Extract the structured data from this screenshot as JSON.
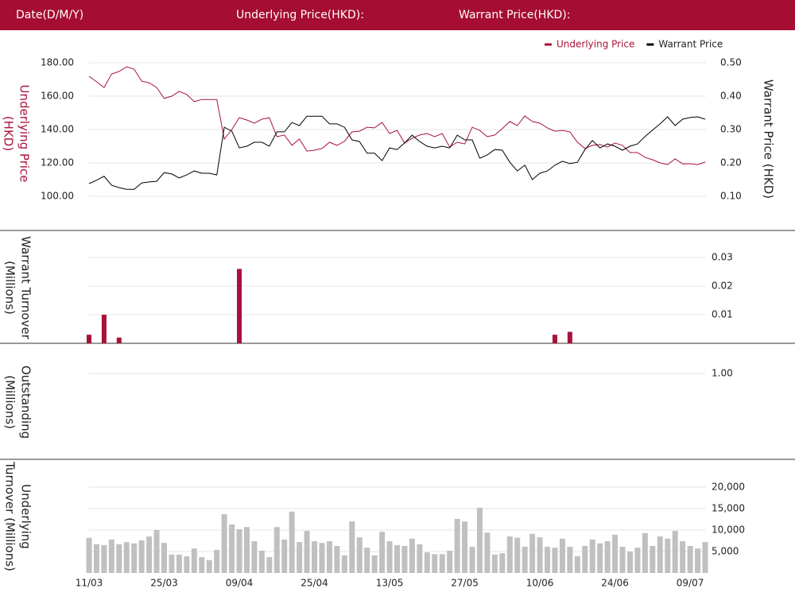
{
  "header": {
    "fields": [
      "Date(D/M/Y)",
      "Underlying Price(HKD):",
      "Warrant Price(HKD):"
    ]
  },
  "chart_data": [
    {
      "type": "line",
      "legend": "top-right",
      "grid": true,
      "y_label": [
        "Underlying Price",
        "(HKD)"
      ],
      "y2_label": [
        "Warrant  Price (HKD)"
      ],
      "ylim": [
        100,
        180
      ],
      "yticks": [
        {
          "value": 100,
          "label": "100.00"
        },
        {
          "value": 120,
          "label": "120.00"
        },
        {
          "value": 140,
          "label": "140.00"
        },
        {
          "value": 160,
          "label": "160.00"
        },
        {
          "value": 180,
          "label": "180.00"
        }
      ],
      "y2lim": [
        0.1,
        0.5
      ],
      "y2ticks": [
        {
          "value": 0.1,
          "label": "0.10"
        },
        {
          "value": 0.2,
          "label": "0.20"
        },
        {
          "value": 0.3,
          "label": "0.30"
        },
        {
          "value": 0.4,
          "label": "0.40"
        },
        {
          "value": 0.5,
          "label": "0.50"
        }
      ],
      "series": [
        {
          "name": "Underlying Price",
          "color": "#a8123a",
          "values": [
            171.9,
            168.6,
            165.2,
            173.3,
            174.8,
            177.6,
            176.2,
            169.0,
            168.0,
            165.2,
            158.6,
            160.0,
            162.9,
            161.0,
            156.7,
            158.0,
            158.0,
            158.0,
            134.3,
            140.0,
            147.1,
            145.7,
            143.8,
            146.2,
            147.1,
            135.7,
            136.7,
            130.5,
            134.3,
            127.1,
            127.6,
            128.6,
            132.4,
            130.5,
            132.9,
            138.6,
            139.0,
            141.4,
            141.0,
            144.3,
            137.6,
            139.5,
            131.9,
            134.8,
            136.7,
            137.6,
            135.7,
            137.6,
            129.5,
            132.4,
            131.4,
            141.4,
            139.5,
            135.7,
            136.7,
            140.5,
            144.8,
            142.4,
            148.1,
            144.8,
            143.8,
            141.0,
            139.0,
            139.5,
            138.6,
            132.4,
            128.6,
            130.5,
            131.0,
            129.5,
            131.9,
            130.5,
            126.2,
            126.2,
            123.3,
            121.9,
            120.0,
            119.0,
            122.4,
            119.5,
            119.5,
            119.0,
            120.5
          ]
        },
        {
          "name": "Warrant Price",
          "color": "#000000",
          "axis": "y2",
          "values": [
            0.138,
            0.148,
            0.16,
            0.133,
            0.126,
            0.121,
            0.121,
            0.14,
            0.143,
            0.145,
            0.171,
            0.167,
            0.155,
            0.164,
            0.176,
            0.169,
            0.169,
            0.164,
            0.307,
            0.295,
            0.245,
            0.25,
            0.262,
            0.262,
            0.25,
            0.293,
            0.293,
            0.321,
            0.312,
            0.34,
            0.34,
            0.34,
            0.317,
            0.317,
            0.307,
            0.269,
            0.264,
            0.229,
            0.229,
            0.207,
            0.245,
            0.24,
            0.26,
            0.283,
            0.264,
            0.25,
            0.245,
            0.25,
            0.245,
            0.283,
            0.269,
            0.269,
            0.214,
            0.224,
            0.24,
            0.238,
            0.202,
            0.176,
            0.193,
            0.15,
            0.169,
            0.176,
            0.193,
            0.205,
            0.198,
            0.202,
            0.24,
            0.267,
            0.245,
            0.257,
            0.25,
            0.238,
            0.25,
            0.257,
            0.279,
            0.298,
            0.317,
            0.338,
            0.312,
            0.331,
            0.336,
            0.338,
            0.331
          ]
        }
      ]
    },
    {
      "type": "bar",
      "grid": true,
      "y_label": [
        "Warrant  Turnover",
        "(Millions)"
      ],
      "ylim": [
        0,
        0.03
      ],
      "yticks": [
        0.01,
        0.02,
        0.03
      ],
      "series": [
        {
          "name": "Warrant Turnover",
          "color": "#a8123a",
          "values": [
            0.003,
            0,
            0.01,
            0,
            0.002,
            0,
            0,
            0,
            0,
            0,
            0,
            0,
            0,
            0,
            0,
            0,
            0,
            0,
            0,
            0,
            0.026,
            0,
            0,
            0,
            0,
            0,
            0,
            0,
            0,
            0,
            0,
            0,
            0,
            0,
            0,
            0,
            0,
            0,
            0,
            0,
            0,
            0,
            0,
            0,
            0,
            0,
            0,
            0,
            0,
            0,
            0,
            0,
            0,
            0,
            0,
            0,
            0,
            0,
            0,
            0,
            0,
            0,
            0.003,
            0,
            0.004,
            0,
            0,
            0,
            0,
            0,
            0,
            0,
            0,
            0,
            0,
            0,
            0,
            0,
            0,
            0,
            0,
            0,
            0
          ]
        }
      ]
    },
    {
      "type": "bar",
      "grid": true,
      "y_label": [
        "Outstanding",
        "(Millions)"
      ],
      "ylim": [
        0,
        1
      ],
      "yticks": [
        {
          "value": 1,
          "label": "1.00"
        }
      ],
      "series": []
    },
    {
      "type": "bar",
      "grid": true,
      "y_label": [
        "Underlying",
        "Turnover (Millions)"
      ],
      "ylim": [
        0,
        20000
      ],
      "yticks": [
        {
          "value": 5000,
          "label": "5,000"
        },
        {
          "value": 10000,
          "label": "10,000"
        },
        {
          "value": 15000,
          "label": "15,000"
        },
        {
          "value": 20000,
          "label": "20,000"
        }
      ],
      "categories": [
        "11/03",
        null,
        null,
        null,
        null,
        null,
        null,
        null,
        null,
        null,
        "25/03",
        null,
        null,
        null,
        null,
        null,
        null,
        null,
        null,
        null,
        "09/04",
        null,
        null,
        null,
        null,
        null,
        null,
        null,
        null,
        null,
        "25/04",
        null,
        null,
        null,
        null,
        null,
        null,
        null,
        null,
        null,
        "13/05",
        null,
        null,
        null,
        null,
        null,
        null,
        null,
        null,
        null,
        "27/05",
        null,
        null,
        null,
        null,
        null,
        null,
        null,
        null,
        null,
        "10/06",
        null,
        null,
        null,
        null,
        null,
        null,
        null,
        null,
        null,
        "24/06",
        null,
        null,
        null,
        null,
        null,
        null,
        null,
        null,
        null,
        "09/07",
        null,
        null
      ],
      "series": [
        {
          "name": "Underlying Turnover",
          "color": "#c0c0c0",
          "values": [
            8200,
            6700,
            6500,
            7800,
            6700,
            7200,
            6900,
            7600,
            8500,
            10000,
            7000,
            4300,
            4300,
            3900,
            5700,
            3700,
            3000,
            5400,
            13700,
            11300,
            10200,
            10700,
            7400,
            5200,
            3700,
            10700,
            7800,
            14300,
            7200,
            9800,
            7400,
            7000,
            7400,
            6300,
            4100,
            12000,
            8300,
            5900,
            4100,
            9600,
            7400,
            6500,
            6300,
            8000,
            6700,
            4800,
            4400,
            4400,
            5200,
            12600,
            12000,
            6100,
            15200,
            9400,
            4300,
            4600,
            8500,
            8200,
            6100,
            9100,
            8300,
            6100,
            5900,
            8000,
            6100,
            3900,
            6300,
            7800,
            6900,
            7400,
            8900,
            6100,
            5000,
            5900,
            9300,
            6300,
            8500,
            8000,
            9800,
            7400,
            6300,
            5700,
            7200
          ]
        }
      ]
    }
  ]
}
